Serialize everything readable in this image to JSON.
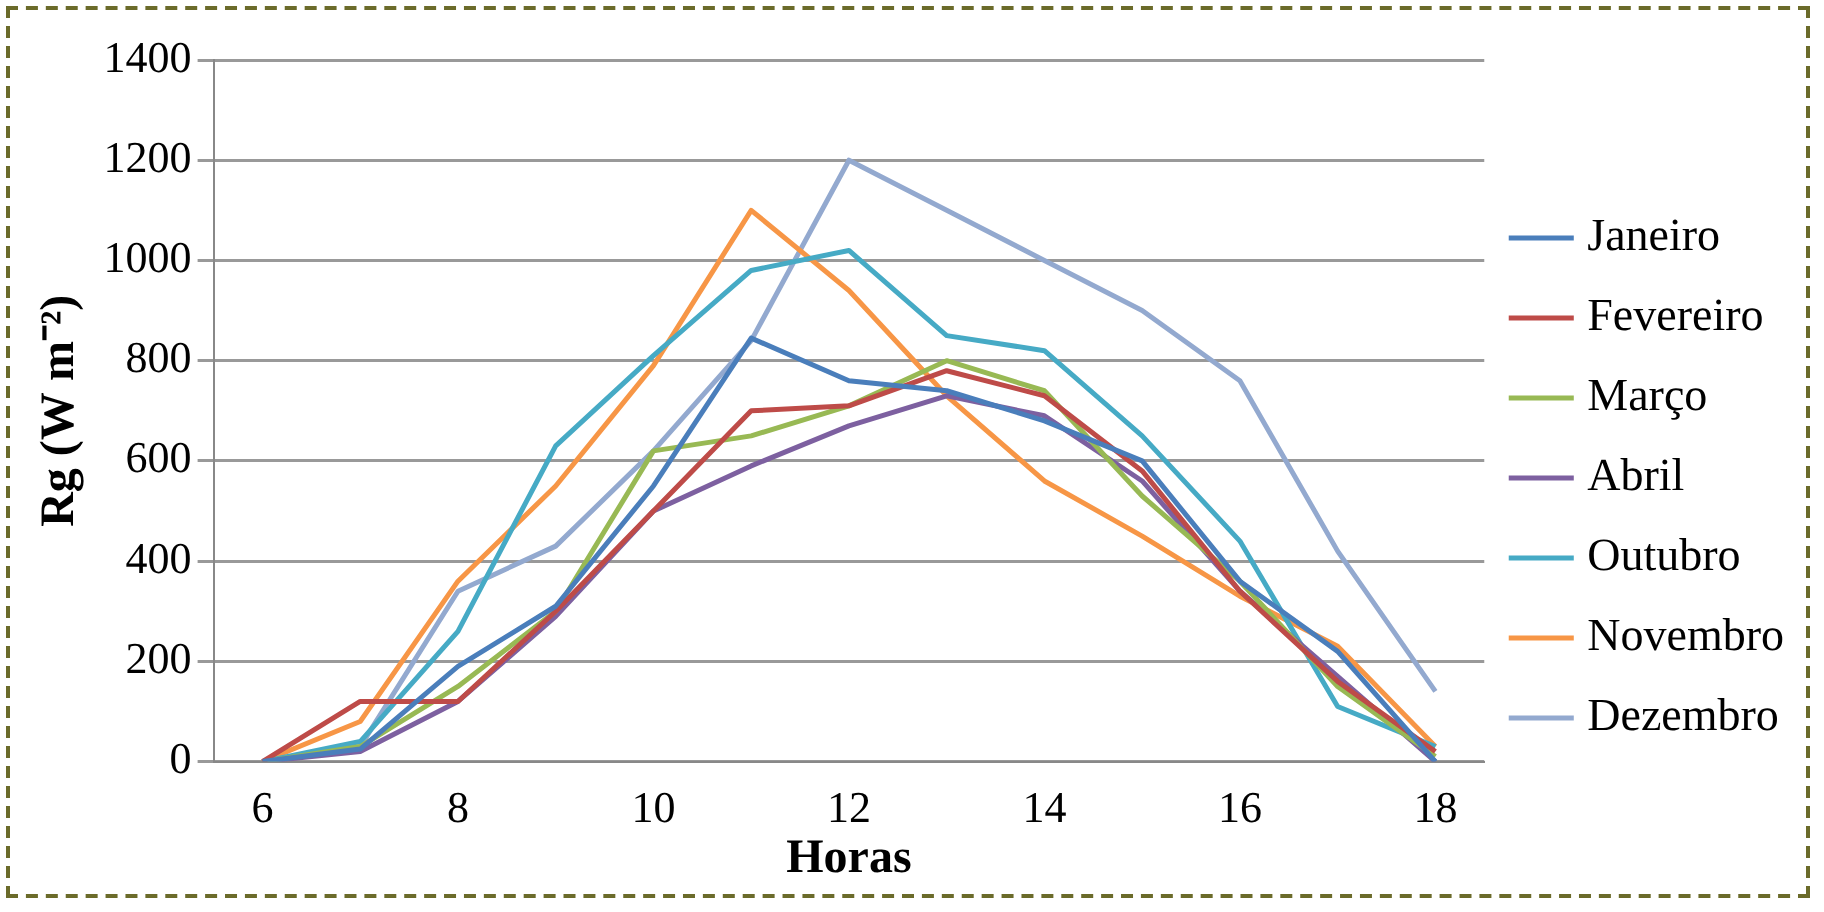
{
  "chart_data": {
    "type": "line",
    "xlabel": "Horas",
    "ylabel": "Rg (W m⁻²)",
    "x": [
      6,
      7,
      8,
      9,
      10,
      11,
      12,
      13,
      14,
      15,
      16,
      17,
      18
    ],
    "xlim": [
      5.5,
      18.5
    ],
    "xticks": [
      6,
      8,
      10,
      12,
      14,
      16,
      18
    ],
    "ylim": [
      0,
      1400
    ],
    "yticks": [
      0,
      200,
      400,
      600,
      800,
      1000,
      1200,
      1400
    ],
    "grid": "y",
    "legend": "right",
    "marker": "none",
    "series": [
      {
        "name": "Janeiro",
        "color": "#4a7ebb",
        "values": [
          0,
          25,
          190,
          310,
          550,
          845,
          760,
          740,
          680,
          600,
          360,
          220,
          0
        ]
      },
      {
        "name": "Fevereiro",
        "color": "#be4b48",
        "values": [
          0,
          120,
          120,
          300,
          500,
          700,
          710,
          780,
          730,
          580,
          340,
          160,
          20
        ]
      },
      {
        "name": "Março",
        "color": "#98b954",
        "values": [
          0,
          30,
          150,
          300,
          620,
          650,
          710,
          800,
          740,
          530,
          360,
          150,
          10
        ]
      },
      {
        "name": "Abril",
        "color": "#7d60a0",
        "values": [
          0,
          20,
          120,
          290,
          500,
          590,
          670,
          730,
          690,
          560,
          340,
          170,
          0
        ]
      },
      {
        "name": "Outubro",
        "color": "#46aac5",
        "values": [
          0,
          40,
          260,
          630,
          810,
          980,
          1020,
          850,
          820,
          650,
          440,
          110,
          30
        ]
      },
      {
        "name": "Novembro",
        "color": "#f79646",
        "values": [
          0,
          80,
          360,
          550,
          790,
          1100,
          940,
          730,
          560,
          450,
          330,
          230,
          30
        ]
      },
      {
        "name": "Dezembro",
        "color": "#93a9cf",
        "values": [
          0,
          30,
          340,
          430,
          620,
          840,
          1200,
          1100,
          1000,
          900,
          760,
          420,
          140
        ]
      }
    ]
  }
}
